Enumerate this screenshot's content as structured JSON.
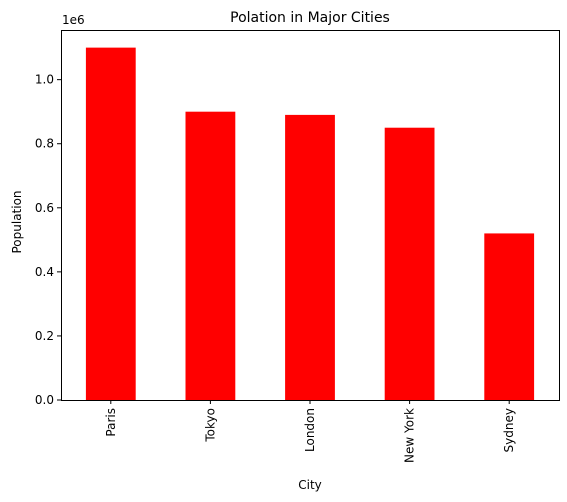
{
  "chart_data": {
    "type": "bar",
    "title": "Polation in Major Cities",
    "xlabel": "City",
    "ylabel": "Population",
    "offset_label": "1e6",
    "categories": [
      "Paris",
      "Tokyo",
      "London",
      "New York",
      "Sydney"
    ],
    "values": [
      1100000,
      900000,
      890000,
      850000,
      520000
    ],
    "ylim": [
      0,
      1155000
    ],
    "yticks": [
      0,
      200000,
      400000,
      600000,
      800000,
      1000000
    ],
    "ytick_labels": [
      "0.0",
      "0.2",
      "0.4",
      "0.6",
      "0.8",
      "1.0"
    ],
    "bar_color": "#ff0000",
    "grid": false,
    "legend": "none"
  }
}
